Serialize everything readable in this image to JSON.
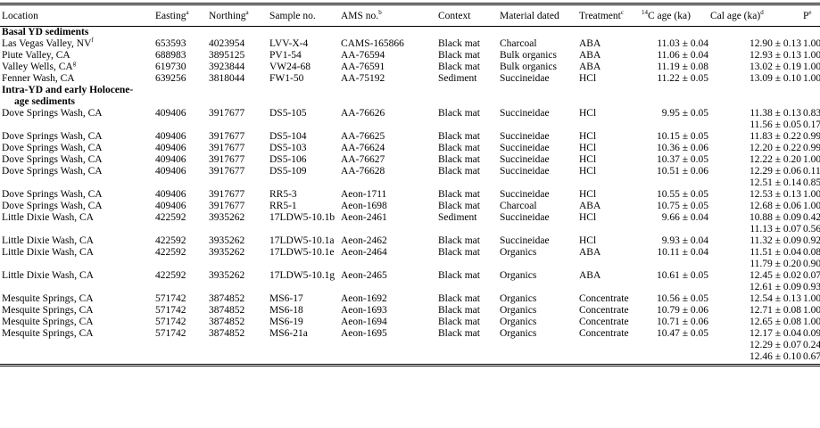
{
  "header": {
    "location": "Location",
    "easting": "Easting",
    "easting_sup": "a",
    "northing": "Northing",
    "northing_sup": "a",
    "sample": "Sample no.",
    "ams": "AMS no.",
    "ams_sup": "b",
    "context": "Context",
    "material": "Material dated",
    "treatment": "Treatment",
    "treatment_sup": "c",
    "c14_pre": "14",
    "c14": "C age (ka)",
    "cal": "Cal age (ka)",
    "cal_sup": "d",
    "p": "P",
    "p_sup": "e"
  },
  "sections": {
    "basal": "Basal YD sediments",
    "intra_line1": "Intra-YD and early Holocene-",
    "intra_line2": "age sediments"
  },
  "basal_rows": [
    {
      "location": "Las Vegas Valley, NV",
      "loc_sup": "f",
      "easting": "653593",
      "northing": "4023954",
      "sample": "LVV-X-4",
      "ams": "CAMS-165866",
      "context": "Black mat",
      "material": "Charcoal",
      "treatment": "ABA",
      "c14": "11.03 ± 0.04",
      "cal": "12.90 ± 0.13",
      "p": "1.00"
    },
    {
      "location": "Piute Valley, CA",
      "loc_sup": "",
      "easting": "688983",
      "northing": "3895125",
      "sample": "PV1-54",
      "ams": "AA-76594",
      "context": "Black mat",
      "material": "Bulk organics",
      "treatment": "ABA",
      "c14": "11.06 ± 0.04",
      "cal": "12.93 ± 0.13",
      "p": "1.00"
    },
    {
      "location": "Valley Wells, CA",
      "loc_sup": "g",
      "easting": "619730",
      "northing": "3923844",
      "sample": "VW24-68",
      "ams": "AA-76591",
      "context": "Black mat",
      "material": "Bulk organics",
      "treatment": "ABA",
      "c14": "11.19 ± 0.08",
      "cal": "13.02 ± 0.19",
      "p": "1.00"
    },
    {
      "location": "Fenner Wash, CA",
      "loc_sup": "",
      "easting": "639256",
      "northing": "3818044",
      "sample": "FW1-50",
      "ams": "AA-75192",
      "context": "Sediment",
      "material": "Succineidae",
      "treatment": "HCl",
      "c14": "11.22 ± 0.05",
      "cal": "13.09 ± 0.10",
      "p": "1.00"
    }
  ],
  "intra_rows": [
    {
      "location": "Dove Springs Wash, CA",
      "easting": "409406",
      "northing": "3917677",
      "sample": "DS5-105",
      "ams": "AA-76626",
      "context": "Black mat",
      "material": "Succineidae",
      "treatment": "HCl",
      "c14": "9.95 ± 0.05",
      "cal": "11.38 ± 0.13",
      "p": "0.83"
    },
    {
      "location": "",
      "easting": "",
      "northing": "",
      "sample": "",
      "ams": "",
      "context": "",
      "material": "",
      "treatment": "",
      "c14": "",
      "cal": "11.56 ± 0.05",
      "p": "0.17"
    },
    {
      "location": "Dove Springs Wash, CA",
      "easting": "409406",
      "northing": "3917677",
      "sample": "DS5-104",
      "ams": "AA-76625",
      "context": "Black mat",
      "material": "Succineidae",
      "treatment": "HCl",
      "c14": "10.15 ± 0.05",
      "cal": "11.83 ± 0.22",
      "p": "0.99"
    },
    {
      "location": "Dove Springs Wash, CA",
      "easting": "409406",
      "northing": "3917677",
      "sample": "DS5-103",
      "ams": "AA-76624",
      "context": "Black mat",
      "material": "Succineidae",
      "treatment": "HCl",
      "c14": "10.36 ± 0.06",
      "cal": "12.20 ± 0.22",
      "p": "0.99"
    },
    {
      "location": "Dove Springs Wash, CA",
      "easting": "409406",
      "northing": "3917677",
      "sample": "DS5-106",
      "ams": "AA-76627",
      "context": "Black mat",
      "material": "Succineidae",
      "treatment": "HCl",
      "c14": "10.37 ± 0.05",
      "cal": "12.22 ± 0.20",
      "p": "1.00"
    },
    {
      "location": "Dove Springs Wash, CA",
      "easting": "409406",
      "northing": "3917677",
      "sample": "DS5-109",
      "ams": "AA-76628",
      "context": "Black mat",
      "material": "Succineidae",
      "treatment": "HCl",
      "c14": "10.51 ± 0.06",
      "cal": "12.29 ± 0.06",
      "p": "0.11"
    },
    {
      "location": "",
      "easting": "",
      "northing": "",
      "sample": "",
      "ams": "",
      "context": "",
      "material": "",
      "treatment": "",
      "c14": "",
      "cal": "12.51 ± 0.14",
      "p": "0.85"
    },
    {
      "location": "Dove Springs Wash, CA",
      "easting": "409406",
      "northing": "3917677",
      "sample": "RR5-3",
      "ams": "Aeon-1711",
      "context": "Black mat",
      "material": "Succineidae",
      "treatment": "HCl",
      "c14": "10.55 ± 0.05",
      "cal": "12.53 ± 0.13",
      "p": "1.00"
    },
    {
      "location": "Dove Springs Wash, CA",
      "easting": "409406",
      "northing": "3917677",
      "sample": "RR5-1",
      "ams": "Aeon-1698",
      "context": "Black mat",
      "material": "Charcoal",
      "treatment": "ABA",
      "c14": "10.75 ± 0.05",
      "cal": "12.68 ± 0.06",
      "p": "1.00"
    },
    {
      "location": "Little Dixie Wash, CA",
      "easting": "422592",
      "northing": "3935262",
      "sample": "17LDW5-10.1b",
      "ams": "Aeon-2461",
      "context": "Sediment",
      "material": "Succineidae",
      "treatment": "HCl",
      "c14": "9.66 ± 0.04",
      "cal": "10.88 ± 0.09",
      "p": "0.42"
    },
    {
      "location": "",
      "easting": "",
      "northing": "",
      "sample": "",
      "ams": "",
      "context": "",
      "material": "",
      "treatment": "",
      "c14": "",
      "cal": "11.13 ± 0.07",
      "p": "0.56"
    },
    {
      "location": "Little Dixie Wash, CA",
      "easting": "422592",
      "northing": "3935262",
      "sample": "17LDW5-10.1a",
      "ams": "Aeon-2462",
      "context": "Black mat",
      "material": "Succineidae",
      "treatment": "HCl",
      "c14": "9.93 ± 0.04",
      "cal": "11.32 ± 0.09",
      "p": "0.92"
    },
    {
      "location": "Little Dixie Wash, CA",
      "easting": "422592",
      "northing": "3935262",
      "sample": "17LDW5-10.1e",
      "ams": "Aeon-2464",
      "context": "Black mat",
      "material": "Organics",
      "treatment": "ABA",
      "c14": "10.11 ± 0.04",
      "cal": "11.51 ± 0.04",
      "p": "0.08"
    },
    {
      "location": "",
      "easting": "",
      "northing": "",
      "sample": "",
      "ams": "",
      "context": "",
      "material": "",
      "treatment": "",
      "c14": "",
      "cal": "11.79 ± 0.20",
      "p": "0.90"
    },
    {
      "location": "Little Dixie Wash, CA",
      "easting": "422592",
      "northing": "3935262",
      "sample": "17LDW5-10.1g",
      "ams": "Aeon-2465",
      "context": "Black mat",
      "material": "Organics",
      "treatment": "ABA",
      "c14": "10.61 ± 0.05",
      "cal": "12.45 ± 0.02",
      "p": "0.07"
    },
    {
      "location": "",
      "easting": "",
      "northing": "",
      "sample": "",
      "ams": "",
      "context": "",
      "material": "",
      "treatment": "",
      "c14": "",
      "cal": "12.61 ± 0.09",
      "p": "0.93"
    },
    {
      "location": "Mesquite Springs, CA",
      "easting": "571742",
      "northing": "3874852",
      "sample": "MS6-17",
      "ams": "Aeon-1692",
      "context": "Black mat",
      "material": "Organics",
      "treatment": "Concentrate",
      "c14": "10.56 ± 0.05",
      "cal": "12.54 ± 0.13",
      "p": "1.00"
    },
    {
      "location": "Mesquite Springs, CA",
      "easting": "571742",
      "northing": "3874852",
      "sample": "MS6-18",
      "ams": "Aeon-1693",
      "context": "Black mat",
      "material": "Organics",
      "treatment": "Concentrate",
      "c14": "10.79 ± 0.06",
      "cal": "12.71 ± 0.08",
      "p": "1.00"
    },
    {
      "location": "Mesquite Springs, CA",
      "easting": "571742",
      "northing": "3874852",
      "sample": "MS6-19",
      "ams": "Aeon-1694",
      "context": "Black mat",
      "material": "Organics",
      "treatment": "Concentrate",
      "c14": "10.71 ± 0.06",
      "cal": "12.65 ± 0.08",
      "p": "1.00"
    },
    {
      "location": "Mesquite Springs, CA",
      "easting": "571742",
      "northing": "3874852",
      "sample": "MS6-21a",
      "ams": "Aeon-1695",
      "context": "Black mat",
      "material": "Organics",
      "treatment": "Concentrate",
      "c14": "10.47 ± 0.05",
      "cal": "12.17 ± 0.04",
      "p": "0.09"
    },
    {
      "location": "",
      "easting": "",
      "northing": "",
      "sample": "",
      "ams": "",
      "context": "",
      "material": "",
      "treatment": "",
      "c14": "",
      "cal": "12.29 ± 0.07",
      "p": "0.24"
    },
    {
      "location": "",
      "easting": "",
      "northing": "",
      "sample": "",
      "ams": "",
      "context": "",
      "material": "",
      "treatment": "",
      "c14": "",
      "cal": "12.46 ± 0.10",
      "p": "0.67"
    }
  ]
}
